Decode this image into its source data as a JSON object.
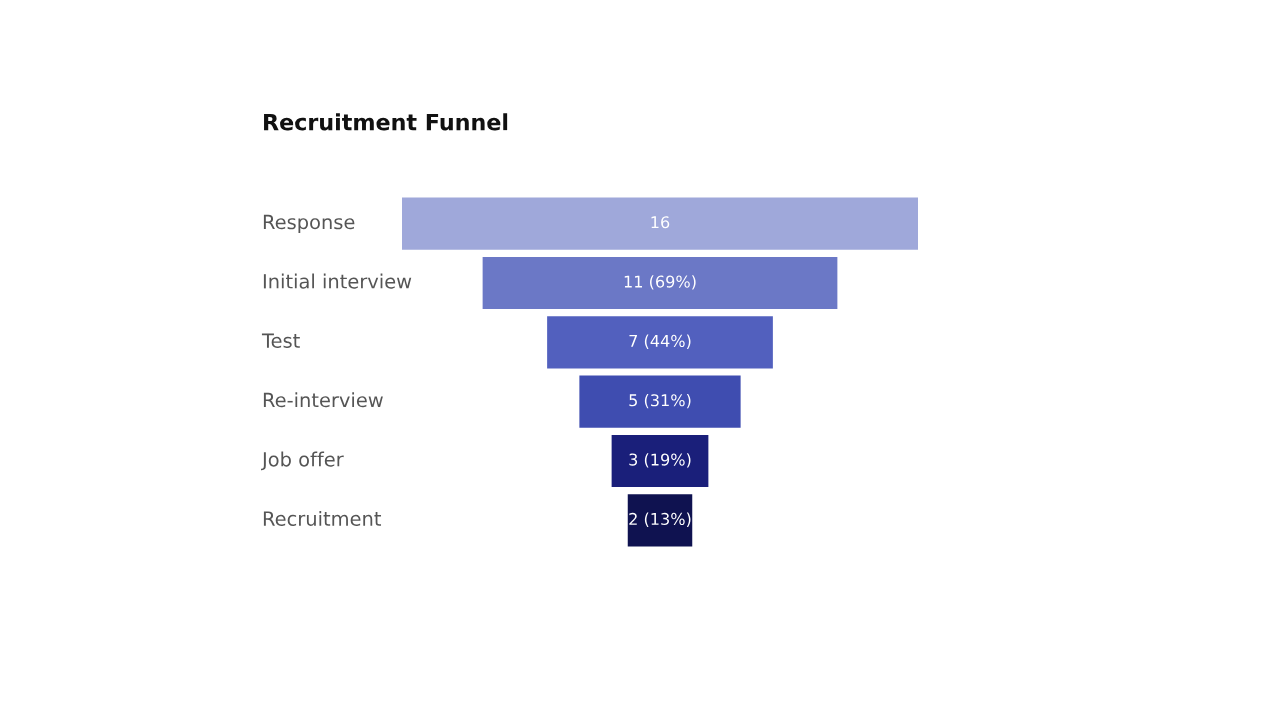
{
  "chart_data": {
    "type": "other",
    "title": "Recruitment Funnel",
    "categories": [
      "Response",
      "Initial interview",
      "Test",
      "Re-interview",
      "Job offer",
      "Recruitment"
    ],
    "values": [
      16,
      11,
      7,
      5,
      3,
      2
    ],
    "value_labels": [
      "16",
      "11 (69%)",
      "7 (44%)",
      "5 (31%)",
      "3 (19%)",
      "2 (13%)"
    ],
    "colors": [
      "#9fa8da",
      "#6b78c6",
      "#5260be",
      "#3f4db0",
      "#1a1f7a",
      "#0f1250"
    ]
  }
}
